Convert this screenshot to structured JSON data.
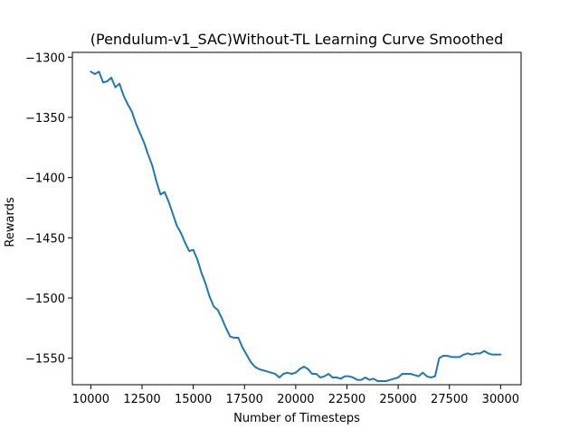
{
  "chart_data": {
    "type": "line",
    "title": "(Pendulum-v1_SAC)Without-TL Learning Curve Smoothed",
    "xlabel": "Number of Timesteps",
    "ylabel": "Rewards",
    "xlim": [
      9100,
      31000
    ],
    "ylim": [
      -1572,
      -1296
    ],
    "xticks": [
      10000,
      12500,
      15000,
      17500,
      20000,
      22500,
      25000,
      27500,
      30000
    ],
    "xtick_labels": [
      "10000",
      "12500",
      "15000",
      "17500",
      "20000",
      "22500",
      "25000",
      "27500",
      "30000"
    ],
    "yticks": [
      -1300,
      -1350,
      -1400,
      -1450,
      -1500,
      -1550
    ],
    "ytick_labels": [
      "−1300",
      "−1350",
      "−1400",
      "−1450",
      "−1500",
      "−1550"
    ],
    "grid": false,
    "line_color": "#1f77b4",
    "series": [
      {
        "values_x": [
          10000,
          10200,
          10400,
          10600,
          10800,
          11000,
          11200,
          11400,
          11600,
          11800,
          12000,
          12200,
          12400,
          12600,
          12800,
          13000,
          13200,
          13400,
          13600,
          13800,
          14000,
          14200,
          14400,
          14600,
          14800,
          15000,
          15200,
          15400,
          15600,
          15800,
          16000,
          16200,
          16400,
          16600,
          16800,
          17000,
          17200,
          17400,
          17600,
          17800,
          18000,
          18200,
          18400,
          18600,
          18800,
          19000,
          19200,
          19400,
          19600,
          19800,
          20000,
          20200,
          20400,
          20600,
          20800,
          21000,
          21200,
          21400,
          21600,
          21800,
          22000,
          22200,
          22400,
          22600,
          22800,
          23000,
          23200,
          23400,
          23600,
          23800,
          24000,
          24200,
          24400,
          24600,
          24800,
          25000,
          25200,
          25400,
          25600,
          25800,
          26000,
          26200,
          26400,
          26600,
          26800,
          27000,
          27200,
          27400,
          27600,
          27800,
          28000,
          28200,
          28400,
          28600,
          28800,
          29000,
          29200,
          29400,
          29600,
          29800,
          30000
        ],
        "values_y": [
          -1312,
          -1314,
          -1312,
          -1321,
          -1320,
          -1317,
          -1325,
          -1322,
          -1332,
          -1339,
          -1345,
          -1355,
          -1363,
          -1371,
          -1381,
          -1390,
          -1403,
          -1414,
          -1412,
          -1420,
          -1430,
          -1440,
          -1446,
          -1454,
          -1461,
          -1460,
          -1468,
          -1479,
          -1488,
          -1499,
          -1507,
          -1510,
          -1517,
          -1525,
          -1532,
          -1533,
          -1533,
          -1541,
          -1547,
          -1553,
          -1557,
          -1559,
          -1560,
          -1561,
          -1562,
          -1563,
          -1566,
          -1563,
          -1562,
          -1563,
          -1562,
          -1559,
          -1557,
          -1559,
          -1563,
          -1563,
          -1566,
          -1565,
          -1563,
          -1566,
          -1566,
          -1567,
          -1565,
          -1565,
          -1566,
          -1568,
          -1568,
          -1566,
          -1568,
          -1567,
          -1569,
          -1569,
          -1569,
          -1568,
          -1567,
          -1566,
          -1563,
          -1563,
          -1563,
          -1564,
          -1565,
          -1562,
          -1565,
          -1566,
          -1565,
          -1550,
          -1548,
          -1548,
          -1549,
          -1549,
          -1549,
          -1547,
          -1546,
          -1547,
          -1546,
          -1546,
          -1544,
          -1546,
          -1547,
          -1547,
          -1547
        ]
      }
    ]
  }
}
